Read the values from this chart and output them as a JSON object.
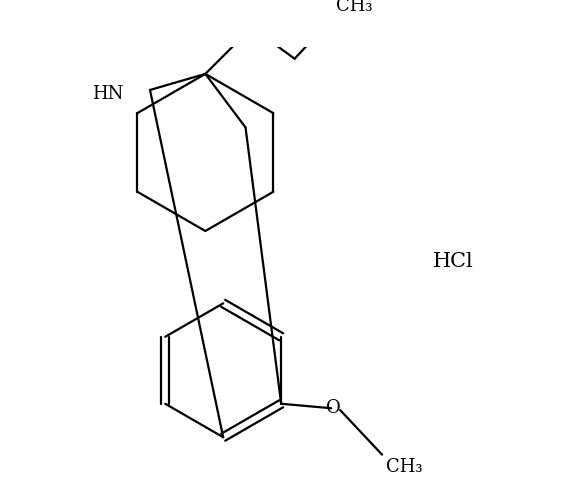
{
  "background_color": "#ffffff",
  "line_color": "#000000",
  "line_width": 1.6,
  "font_size": 13,
  "hcl_text": "HCl",
  "ch3_text": "CH₃",
  "hn_text": "HN",
  "o_text": "O"
}
